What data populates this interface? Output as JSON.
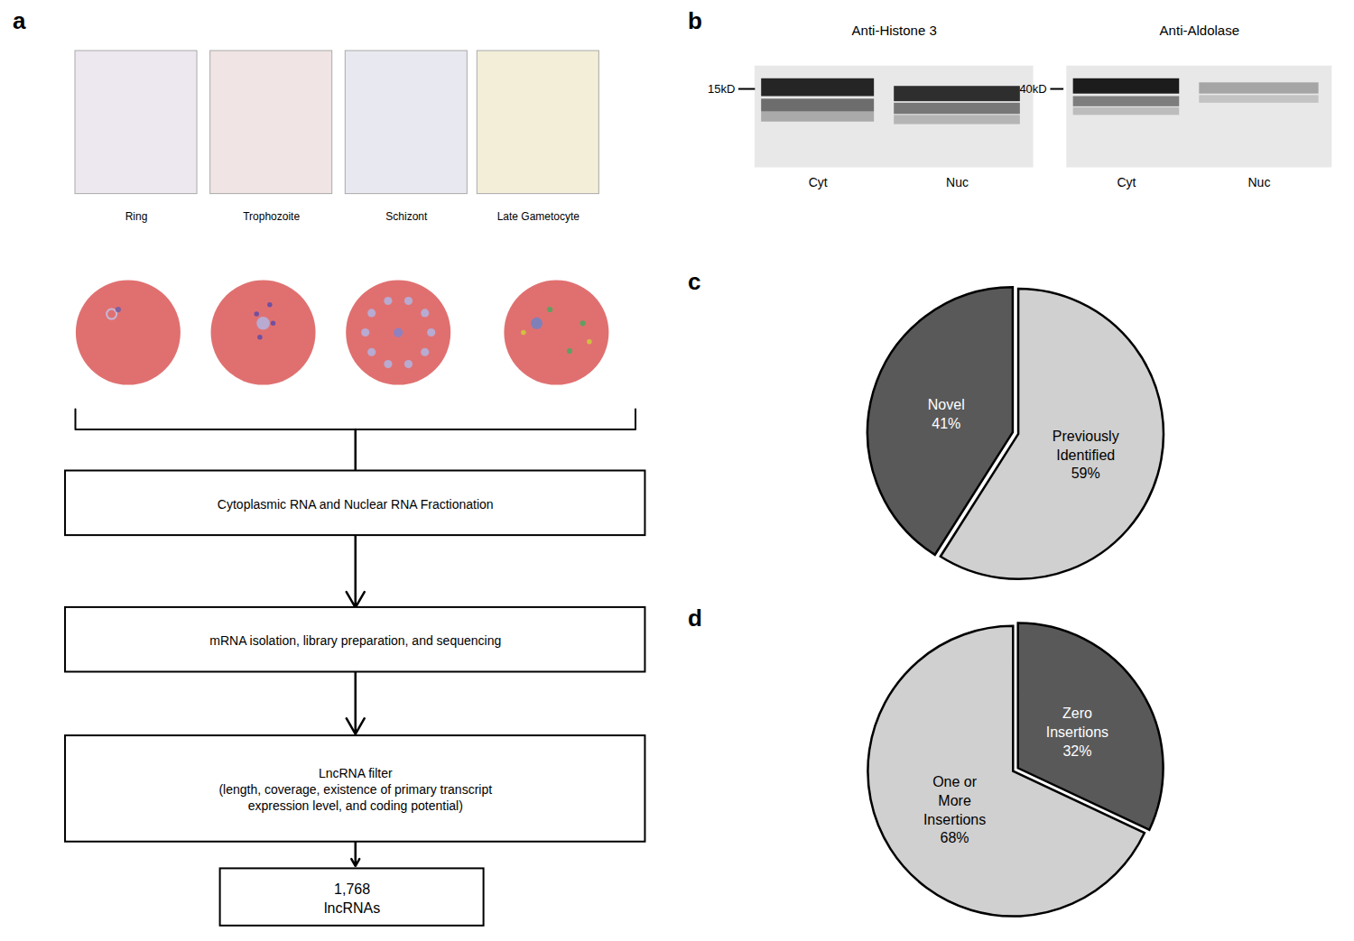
{
  "chart_data": [
    {
      "type": "flowchart",
      "title": "a",
      "categories": [
        "Ring",
        "Trophozoite",
        "Schizont",
        "Late Gametocyte"
      ],
      "annotations": [
        "Cytoplasmic RNA and Nuclear RNA Fractionation",
        "mRNA isolation, library preparation, and sequencing",
        "LncRNA filter\n(length, coverage, existence of primary transcript\nexpression level, and coding potential)",
        "1,768\nlncRNAs"
      ]
    },
    {
      "type": "western_blot",
      "title": "b",
      "categories": [
        "Cyt",
        "Nuc"
      ],
      "annotations": [
        "Anti-Histone 3",
        "Anti-Aldolase",
        "15kD",
        "40kD"
      ]
    },
    {
      "type": "pie",
      "title": "c",
      "categories": [
        "Previously\nIdentified",
        "Novel"
      ],
      "values": [
        59,
        41
      ],
      "value_labels": [
        "59%",
        "41%"
      ],
      "colors": [
        "#d0d0d0",
        "#595959"
      ],
      "data_labels": true
    },
    {
      "type": "pie",
      "title": "d",
      "categories": [
        "Zero\nInsertions",
        "One or\nMore\nInsertions"
      ],
      "values": [
        32,
        68
      ],
      "value_labels": [
        "32%",
        "68%"
      ],
      "colors": [
        "#595959",
        "#d0d0d0"
      ],
      "data_labels": true
    }
  ]
}
